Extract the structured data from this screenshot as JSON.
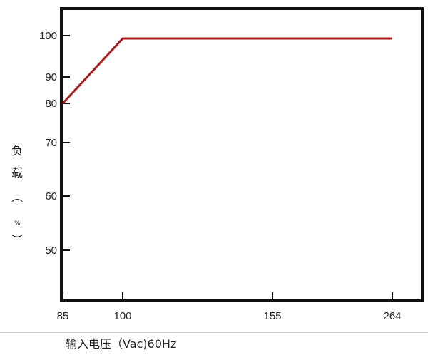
{
  "chart_data": {
    "type": "line",
    "title": "",
    "xlabel": "输入电压（Vac)60Hz",
    "ylabel_chars": [
      "负",
      "载",
      "（",
      "%",
      "）"
    ],
    "x_ticks": [
      85,
      100,
      155,
      264
    ],
    "y_ticks": [
      50,
      60,
      70,
      80,
      90,
      100
    ],
    "series": [
      {
        "x": [
          85,
          100,
          264
        ],
        "y": [
          80,
          99.3,
          99.3
        ]
      }
    ],
    "grid": false,
    "colors": {
      "line": "#b01818",
      "axis": "#111111"
    }
  }
}
